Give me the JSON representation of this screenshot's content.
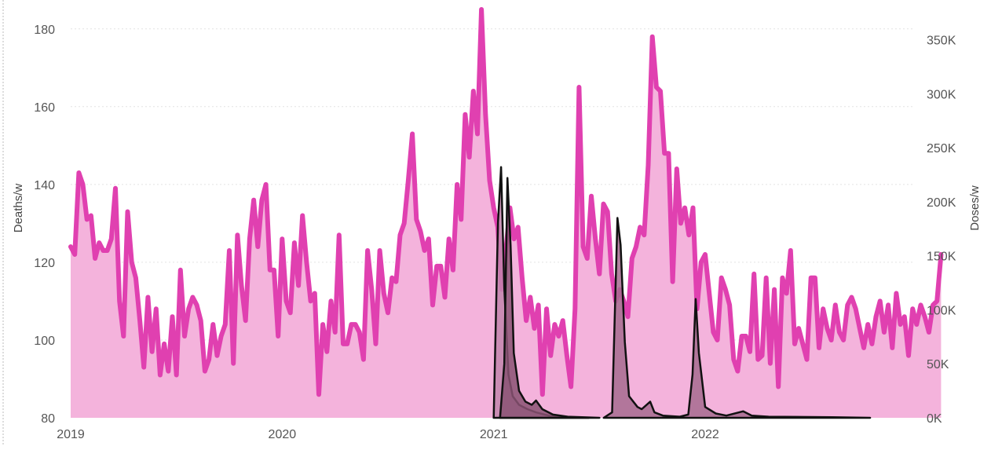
{
  "chart_data": {
    "type": "area",
    "xlabel": "",
    "ylabel": "Deaths/w",
    "y2label": "Doses/w",
    "x_ticks": [
      "2019",
      "2020",
      "2021",
      "2022"
    ],
    "x_tick_values": [
      2019.0,
      2020.0,
      2021.0,
      2022.0
    ],
    "xlim": [
      2019.0,
      2022.98
    ],
    "ylim": [
      80,
      185
    ],
    "y_ticks": [
      "80",
      "100",
      "120",
      "140",
      "160",
      "180"
    ],
    "y_tick_values": [
      80,
      100,
      120,
      140,
      160,
      180
    ],
    "y2lim": [
      0,
      378000
    ],
    "y2_ticks": [
      "0K",
      "50K",
      "100K",
      "150K",
      "200K",
      "250K",
      "300K",
      "350K"
    ],
    "y2_tick_values": [
      0,
      50000,
      100000,
      150000,
      200000,
      250000,
      300000,
      350000
    ],
    "grid": true,
    "colors": {
      "deaths_line": "#e040b0",
      "deaths_fill": "#f4b3dc",
      "dose1_fill": "#c285ad",
      "dose2_fill": "#8a5273",
      "dose3_fill": "#a66b8f",
      "dose_line": "#111111"
    },
    "series": [
      {
        "axis": "left",
        "kind": "deaths",
        "x_start": 2019.0,
        "x_step": 0.01923,
        "values": [
          124,
          122,
          143,
          140,
          131,
          132,
          121,
          125,
          123,
          123,
          126,
          139,
          110,
          101,
          133,
          120,
          116,
          105,
          93,
          111,
          97,
          108,
          91,
          99,
          92,
          106,
          91,
          118,
          101,
          108,
          111,
          109,
          105,
          92,
          95,
          104,
          96,
          101,
          104,
          123,
          94,
          127,
          114,
          105,
          126,
          136,
          124,
          136,
          140,
          118,
          118,
          101,
          126,
          110,
          107,
          125,
          114,
          132,
          120,
          110,
          112,
          86,
          104,
          97,
          110,
          102,
          127,
          99,
          99,
          104,
          104,
          102,
          95,
          123,
          113,
          99,
          123,
          112,
          107,
          116,
          115,
          127,
          130,
          141,
          153,
          131,
          128,
          123,
          126,
          109,
          119,
          119,
          111,
          126,
          118,
          140,
          131,
          158,
          147,
          164,
          153,
          185,
          158,
          141,
          134,
          129,
          113,
          123,
          134,
          126,
          129,
          116,
          105,
          111,
          103,
          109,
          86,
          108,
          96,
          104,
          101,
          105,
          96,
          88,
          108,
          165,
          124,
          121,
          137,
          126,
          117,
          135,
          133,
          117,
          110,
          113,
          110,
          106,
          121,
          124,
          129,
          127,
          145,
          178,
          165,
          164,
          148,
          148,
          115,
          144,
          130,
          134,
          127,
          134,
          108,
          120,
          122,
          112,
          102,
          100,
          116,
          113,
          109,
          95,
          92,
          101,
          101,
          97,
          117,
          95,
          96,
          116,
          94,
          113,
          88,
          116,
          112,
          123,
          99,
          103,
          99,
          95,
          116,
          116,
          98,
          108,
          103,
          100,
          109,
          102,
          100,
          109,
          111,
          108,
          103,
          98,
          104,
          99,
          106,
          110,
          102,
          109,
          98,
          112,
          104,
          106,
          96,
          108,
          104,
          109,
          106,
          102,
          109,
          110,
          122
        ],
        "values_note_removed": ""
      },
      {
        "axis": "right",
        "kind": "doses",
        "x": [
          2021.0,
          2021.02,
          2021.035,
          2021.05,
          2021.07,
          2021.09,
          2021.12,
          2021.16,
          2021.2,
          2021.26,
          2021.35,
          2021.45
        ],
        "values": [
          0,
          180000,
          232000,
          120000,
          40000,
          20000,
          12000,
          8000,
          5000,
          2000,
          500,
          0
        ]
      },
      {
        "axis": "right",
        "kind": "doses",
        "x": [
          2021.03,
          2021.05,
          2021.065,
          2021.08,
          2021.095,
          2021.12,
          2021.15,
          2021.18,
          2021.2,
          2021.23,
          2021.28,
          2021.35,
          2021.5
        ],
        "values": [
          0,
          50000,
          222000,
          160000,
          60000,
          25000,
          15000,
          12000,
          16000,
          8000,
          3000,
          1000,
          0
        ]
      },
      {
        "axis": "right",
        "kind": "doses",
        "x": [
          2021.52,
          2021.56,
          2021.585,
          2021.6,
          2021.62,
          2021.64,
          2021.68,
          2021.7,
          2021.74,
          2021.76,
          2021.8,
          2021.88,
          2021.92,
          2021.94,
          2021.955,
          2021.97,
          2022.0,
          2022.05,
          2022.1,
          2022.18,
          2022.22,
          2022.3,
          2022.6,
          2022.78
        ],
        "values": [
          0,
          5000,
          185000,
          160000,
          70000,
          20000,
          10000,
          8000,
          15000,
          5000,
          2000,
          1000,
          3000,
          40000,
          110000,
          60000,
          10000,
          4000,
          2000,
          6000,
          2000,
          1000,
          500,
          0
        ]
      }
    ]
  }
}
